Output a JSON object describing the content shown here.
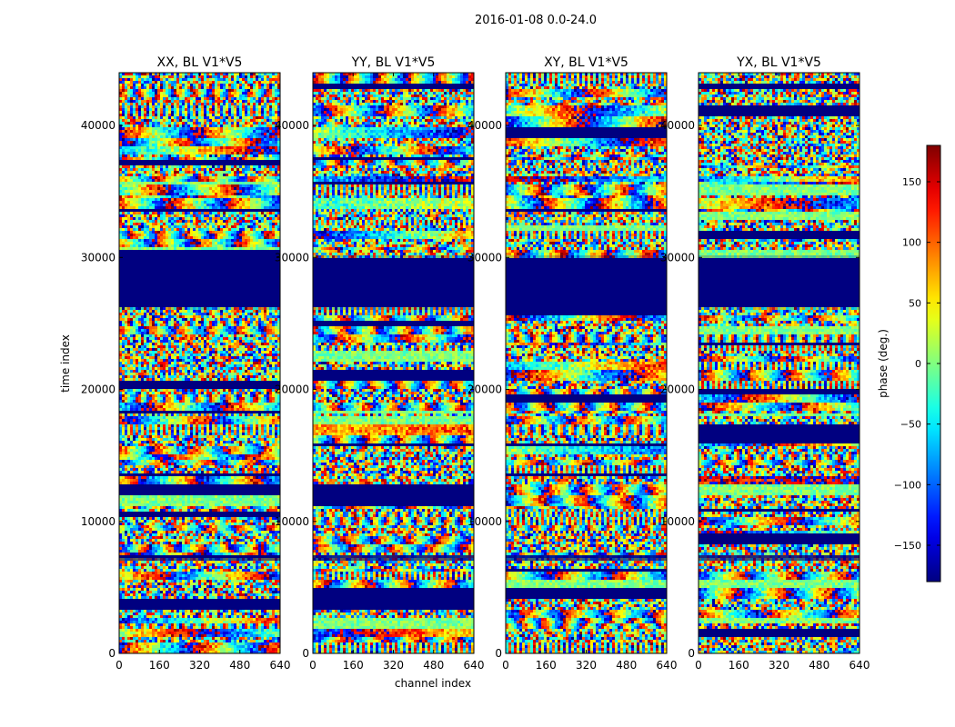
{
  "figure_title": "2016-01-08 0.0-24.0",
  "chart_data": {
    "type": "heatmap",
    "panels": [
      {
        "title": "XX, BL V1*V5"
      },
      {
        "title": "YY, BL V1*V5"
      },
      {
        "title": "XY, BL V1*V5"
      },
      {
        "title": "YX, BL V1*V5"
      }
    ],
    "xlabel": "channel index",
    "ylabel": "time index",
    "xlim": [
      0,
      640
    ],
    "ylim": [
      0,
      44000
    ],
    "xticks": [
      0,
      160,
      320,
      480,
      640
    ],
    "yticks": [
      0,
      10000,
      20000,
      30000,
      40000
    ],
    "flagged_time_ranges": [
      [
        7100,
        7400
      ],
      [
        26200,
        30000
      ]
    ],
    "colorbar": {
      "label": "phase (deg.)",
      "range": [
        -180,
        180
      ],
      "ticks": [
        -150,
        -100,
        -50,
        0,
        50,
        100,
        150
      ],
      "colormap": "jet"
    }
  }
}
